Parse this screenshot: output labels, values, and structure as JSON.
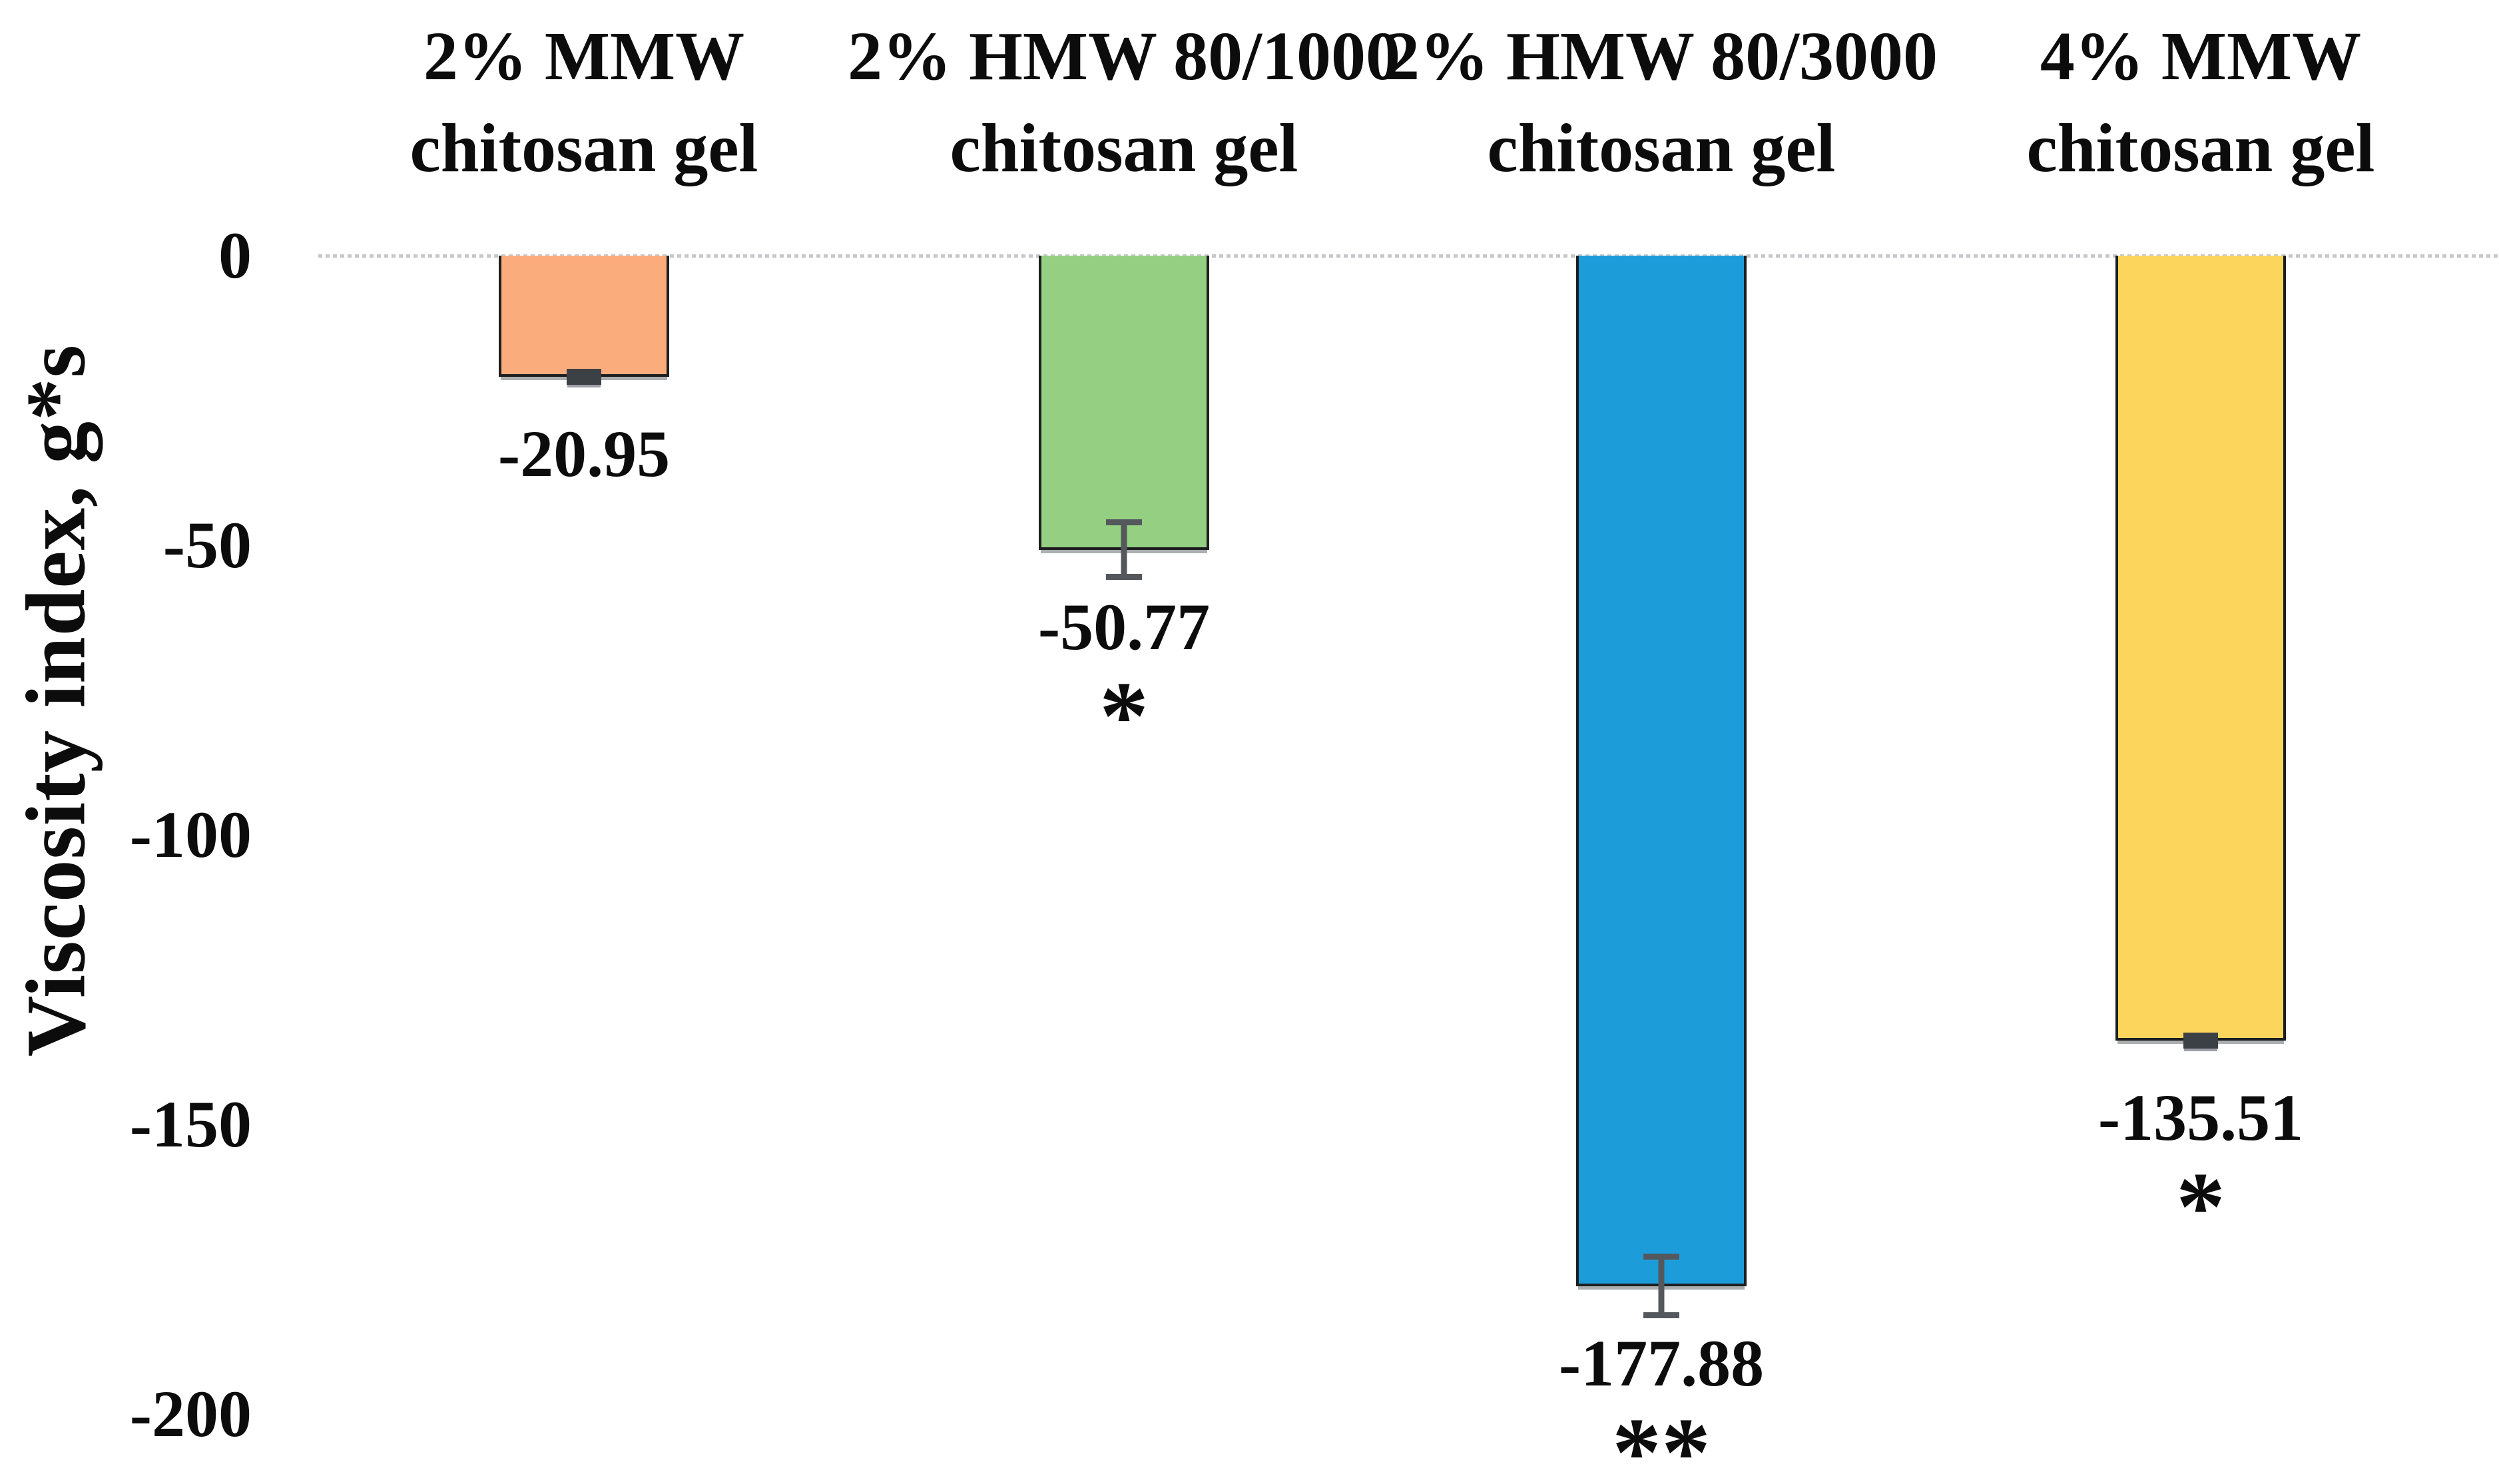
{
  "chart_data": {
    "type": "bar",
    "title": "",
    "ylabel": "Viscosity index, g*s",
    "categories": [
      "2% MMW chitosan gel",
      "2% HMW 80/1000 chitosan gel",
      "2% HMW 80/3000 chitosan gel",
      "4% MMW chitosan gel"
    ],
    "values": [
      -20.95,
      -50.77,
      -177.88,
      -135.51
    ],
    "data_labels": [
      "-20.95",
      "-50.77",
      "-177.88",
      "-135.51"
    ],
    "significance": [
      "",
      "*",
      "**",
      "*"
    ],
    "error_bars_half_units": [
      1.3,
      5.2,
      5.6,
      1.4
    ],
    "error_bar_style": [
      "dash",
      "beam",
      "beam",
      "dash"
    ],
    "bar_colors": [
      "#FBAC7C",
      "#94CF82",
      "#1C9DD9",
      "#FCD55D"
    ],
    "bar_border_color": "#1d1e20",
    "error_bar_color": "#54585d",
    "zero_line_color": "#c5c8cb",
    "y_ticks": [
      0,
      -50,
      -100,
      -150,
      -200
    ],
    "y_tick_labels": [
      "0",
      "-50",
      "-100",
      "-150",
      "-200"
    ],
    "ylim": [
      -212,
      0
    ],
    "grid": false,
    "legend": false,
    "columns": [
      {
        "header_line1": "2% MMW",
        "header_line2": "chitosan gel",
        "value_label": "-20.95",
        "significance": ""
      },
      {
        "header_line1": "2% HMW 80/1000",
        "header_line2": "chitosan gel",
        "value_label": "-50.77",
        "significance": "*"
      },
      {
        "header_line1": "2% HMW 80/3000",
        "header_line2": "chitosan gel",
        "value_label": "-177.88",
        "significance": "**"
      },
      {
        "header_line1": "4% MMW",
        "header_line2": "chitosan gel",
        "value_label": "-135.51",
        "significance": "*"
      }
    ]
  }
}
